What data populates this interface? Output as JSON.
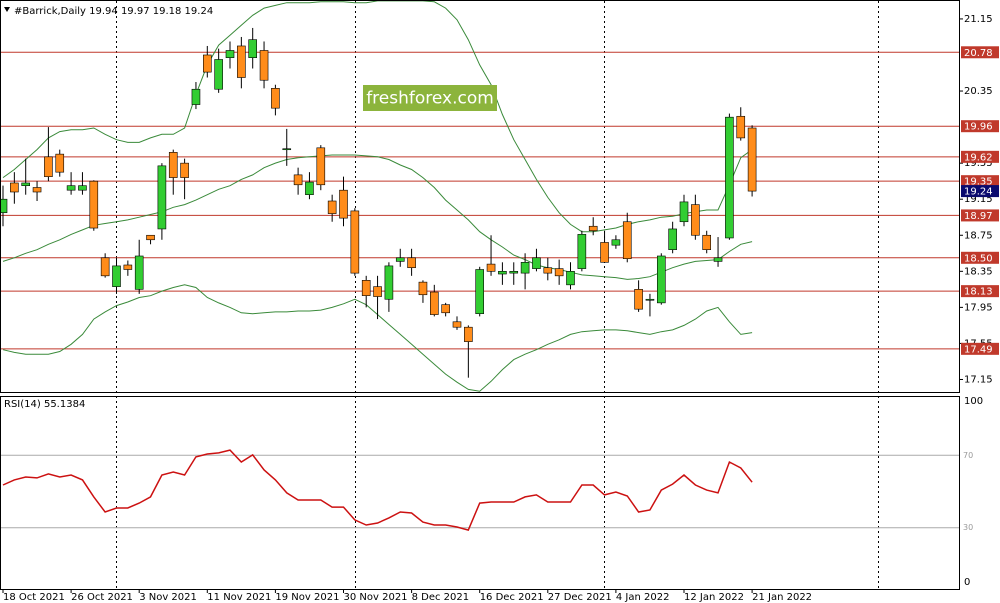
{
  "chart_data": [
    {
      "type": "candlestick",
      "title": "#Barrick,Daily  19.94 19.97 19.18 19.24",
      "watermark": "freshforex.com",
      "categories": [
        "18 Oct 2021",
        null,
        null,
        null,
        null,
        null,
        "26 Oct 2021",
        null,
        null,
        null,
        null,
        null,
        "3 Nov 2021",
        null,
        null,
        null,
        null,
        null,
        "11 Nov 2021",
        null,
        null,
        null,
        null,
        null,
        "19 Nov 2021",
        null,
        null,
        null,
        null,
        null,
        "30 Nov 2021",
        null,
        null,
        null,
        null,
        null,
        "8 Dec 2021",
        null,
        null,
        null,
        null,
        null,
        "16 Dec 2021",
        null,
        null,
        null,
        null,
        null,
        "27 Dec 2021",
        null,
        null,
        null,
        null,
        null,
        "4 Jan 2022",
        null,
        null,
        null,
        null,
        null,
        "12 Jan 2022",
        null,
        null,
        null,
        null,
        null,
        "21 Jan 2022"
      ],
      "open": [
        19.0,
        19.33,
        19.3,
        19.28,
        19.62,
        19.65,
        19.25,
        19.25,
        19.35,
        18.5,
        18.18,
        18.42,
        18.15,
        18.75,
        18.82,
        19.67,
        19.55,
        20.2,
        20.75,
        20.37,
        20.72,
        20.85,
        20.72,
        20.8,
        20.38,
        19.7,
        19.42,
        19.2,
        19.72,
        19.13,
        19.25,
        19.02,
        18.25,
        18.18,
        18.04,
        18.46,
        18.5,
        18.23,
        18.12,
        17.98,
        17.79,
        17.73,
        17.88,
        18.43,
        18.32,
        18.33,
        18.33,
        18.38,
        18.39,
        18.38,
        18.2,
        18.38,
        18.85,
        18.67,
        18.64,
        18.9,
        18.15,
        18.03,
        18.0,
        18.59,
        18.9,
        19.09,
        18.75,
        18.46,
        18.72,
        20.07,
        19.94
      ],
      "high": [
        19.3,
        19.45,
        19.6,
        19.35,
        19.95,
        19.7,
        19.45,
        19.45,
        19.36,
        18.55,
        18.5,
        18.47,
        18.7,
        18.75,
        19.55,
        19.7,
        19.6,
        20.45,
        20.85,
        20.82,
        20.9,
        20.95,
        21.05,
        20.9,
        20.42,
        19.93,
        19.5,
        19.45,
        19.75,
        19.2,
        19.4,
        19.05,
        18.3,
        18.3,
        18.45,
        18.6,
        18.6,
        18.25,
        18.2,
        18.0,
        17.85,
        17.75,
        18.4,
        18.75,
        18.45,
        18.45,
        18.55,
        18.6,
        18.5,
        18.48,
        18.45,
        18.8,
        18.95,
        18.8,
        18.75,
        19.0,
        18.25,
        18.1,
        18.55,
        18.9,
        19.2,
        19.2,
        18.8,
        18.73,
        20.1,
        20.17,
        19.97
      ],
      "low": [
        18.85,
        19.1,
        19.2,
        19.13,
        19.35,
        19.4,
        19.2,
        19.2,
        18.8,
        18.28,
        18.1,
        18.3,
        18.1,
        18.65,
        18.7,
        19.2,
        19.15,
        20.15,
        20.5,
        20.33,
        20.6,
        20.38,
        20.6,
        20.38,
        20.08,
        19.52,
        19.2,
        19.15,
        19.25,
        18.9,
        18.85,
        18.3,
        17.95,
        17.82,
        17.9,
        18.4,
        18.3,
        18.0,
        17.85,
        17.85,
        17.7,
        17.17,
        17.85,
        18.3,
        18.2,
        18.2,
        18.15,
        18.35,
        18.25,
        18.2,
        18.15,
        18.35,
        18.75,
        18.45,
        18.6,
        18.45,
        17.9,
        17.85,
        17.98,
        18.55,
        18.85,
        18.7,
        18.55,
        18.4,
        18.7,
        19.8,
        19.18
      ],
      "close": [
        19.15,
        19.23,
        19.33,
        19.23,
        19.4,
        19.45,
        19.3,
        19.3,
        18.83,
        18.3,
        18.41,
        18.37,
        18.52,
        18.7,
        19.52,
        19.39,
        19.39,
        20.37,
        20.56,
        20.7,
        20.8,
        20.5,
        20.92,
        20.47,
        20.16,
        19.71,
        19.31,
        19.34,
        19.31,
        18.99,
        18.94,
        18.33,
        18.08,
        18.07,
        18.41,
        18.5,
        18.39,
        18.09,
        17.87,
        17.89,
        17.73,
        17.57,
        18.37,
        18.35,
        18.35,
        18.35,
        18.45,
        18.5,
        18.33,
        18.3,
        18.35,
        18.76,
        18.8,
        18.45,
        18.7,
        18.49,
        17.93,
        18.04,
        18.52,
        18.82,
        19.12,
        18.75,
        18.59,
        18.5,
        20.06,
        19.83,
        19.24
      ],
      "up_color": "#32cd32",
      "down_color": "#ff8c1a",
      "bands": {
        "color": "#3a8a3a",
        "upper": [
          19.39,
          19.48,
          19.59,
          19.7,
          19.83,
          19.9,
          19.92,
          19.92,
          19.94,
          19.87,
          19.81,
          19.78,
          19.78,
          19.83,
          19.87,
          19.87,
          19.94,
          20.31,
          20.64,
          20.86,
          20.97,
          21.08,
          21.19,
          21.27,
          21.3,
          21.33,
          21.33,
          21.33,
          21.34,
          21.34,
          21.34,
          21.33,
          21.33,
          21.35,
          21.35,
          21.35,
          21.35,
          21.35,
          21.34,
          21.27,
          21.14,
          20.92,
          20.64,
          20.42,
          20.09,
          19.81,
          19.59,
          19.37,
          19.17,
          19.0,
          18.87,
          18.79,
          18.79,
          18.81,
          18.83,
          18.87,
          18.9,
          18.92,
          18.95,
          18.96,
          18.99,
          19.01,
          19.03,
          19.03,
          19.31,
          19.61,
          19.7
        ],
        "middle": [
          18.46,
          18.5,
          18.55,
          18.59,
          18.65,
          18.7,
          18.76,
          18.81,
          18.86,
          18.88,
          18.9,
          18.92,
          18.95,
          18.98,
          19.01,
          19.06,
          19.09,
          19.14,
          19.2,
          19.26,
          19.3,
          19.37,
          19.42,
          19.5,
          19.55,
          19.59,
          19.61,
          19.62,
          19.63,
          19.64,
          19.64,
          19.64,
          19.63,
          19.62,
          19.59,
          19.53,
          19.48,
          19.39,
          19.28,
          19.14,
          19.03,
          18.92,
          18.79,
          18.7,
          18.62,
          18.53,
          18.48,
          18.42,
          18.39,
          18.37,
          18.34,
          18.31,
          18.3,
          18.29,
          18.28,
          18.26,
          18.27,
          18.29,
          18.34,
          18.39,
          18.43,
          18.46,
          18.47,
          18.48,
          18.57,
          18.65,
          18.68
        ],
        "lower": [
          17.48,
          17.45,
          17.43,
          17.43,
          17.43,
          17.46,
          17.54,
          17.65,
          17.82,
          17.9,
          17.97,
          18.01,
          18.06,
          18.08,
          18.13,
          18.17,
          18.2,
          18.17,
          18.06,
          18.0,
          17.95,
          17.89,
          17.88,
          17.89,
          17.9,
          17.9,
          17.91,
          17.91,
          17.92,
          17.95,
          17.99,
          18.04,
          17.98,
          17.87,
          17.76,
          17.65,
          17.54,
          17.43,
          17.32,
          17.21,
          17.12,
          17.04,
          17.02,
          17.13,
          17.26,
          17.37,
          17.43,
          17.48,
          17.54,
          17.59,
          17.65,
          17.68,
          17.69,
          17.7,
          17.7,
          17.69,
          17.67,
          17.65,
          17.68,
          17.7,
          17.75,
          17.82,
          17.91,
          17.95,
          17.79,
          17.65,
          17.67
        ]
      },
      "levels": [
        20.78,
        19.96,
        19.62,
        19.35,
        18.97,
        {
          "value": 18.5,
          "label": "18.50"
        },
        18.13,
        17.49
      ],
      "level_color": "#c0392b",
      "last_price": 19.24,
      "ylim": [
        17.0,
        21.36
      ],
      "yticks": [
        21.15,
        20.35,
        19.55,
        19.15,
        18.75,
        18.35,
        17.95,
        17.55,
        17.15
      ]
    },
    {
      "type": "line",
      "title": "RSI(14) 55.1384",
      "color": "#cc1111",
      "values": [
        53.6,
        56.4,
        58.0,
        57.5,
        59.7,
        58.0,
        59.1,
        56.4,
        47.0,
        38.7,
        40.9,
        40.9,
        43.6,
        47.0,
        59.1,
        60.8,
        59.1,
        69.1,
        70.7,
        71.3,
        72.9,
        66.3,
        70.2,
        61.9,
        56.4,
        49.2,
        45.3,
        45.3,
        45.3,
        41.4,
        41.4,
        34.3,
        31.5,
        32.6,
        35.4,
        38.7,
        38.1,
        33.1,
        31.5,
        31.5,
        30.4,
        28.7,
        43.6,
        44.2,
        44.2,
        44.2,
        47.0,
        48.1,
        44.2,
        44.2,
        44.2,
        53.6,
        53.6,
        48.1,
        49.7,
        47.5,
        38.7,
        39.8,
        50.8,
        54.1,
        59.1,
        53.6,
        50.8,
        49.2,
        66.3,
        63.0,
        55.1384
      ],
      "levels": [
        70,
        30
      ],
      "ylim": [
        0,
        100
      ],
      "yticks": [
        100,
        70,
        30,
        0
      ]
    }
  ]
}
